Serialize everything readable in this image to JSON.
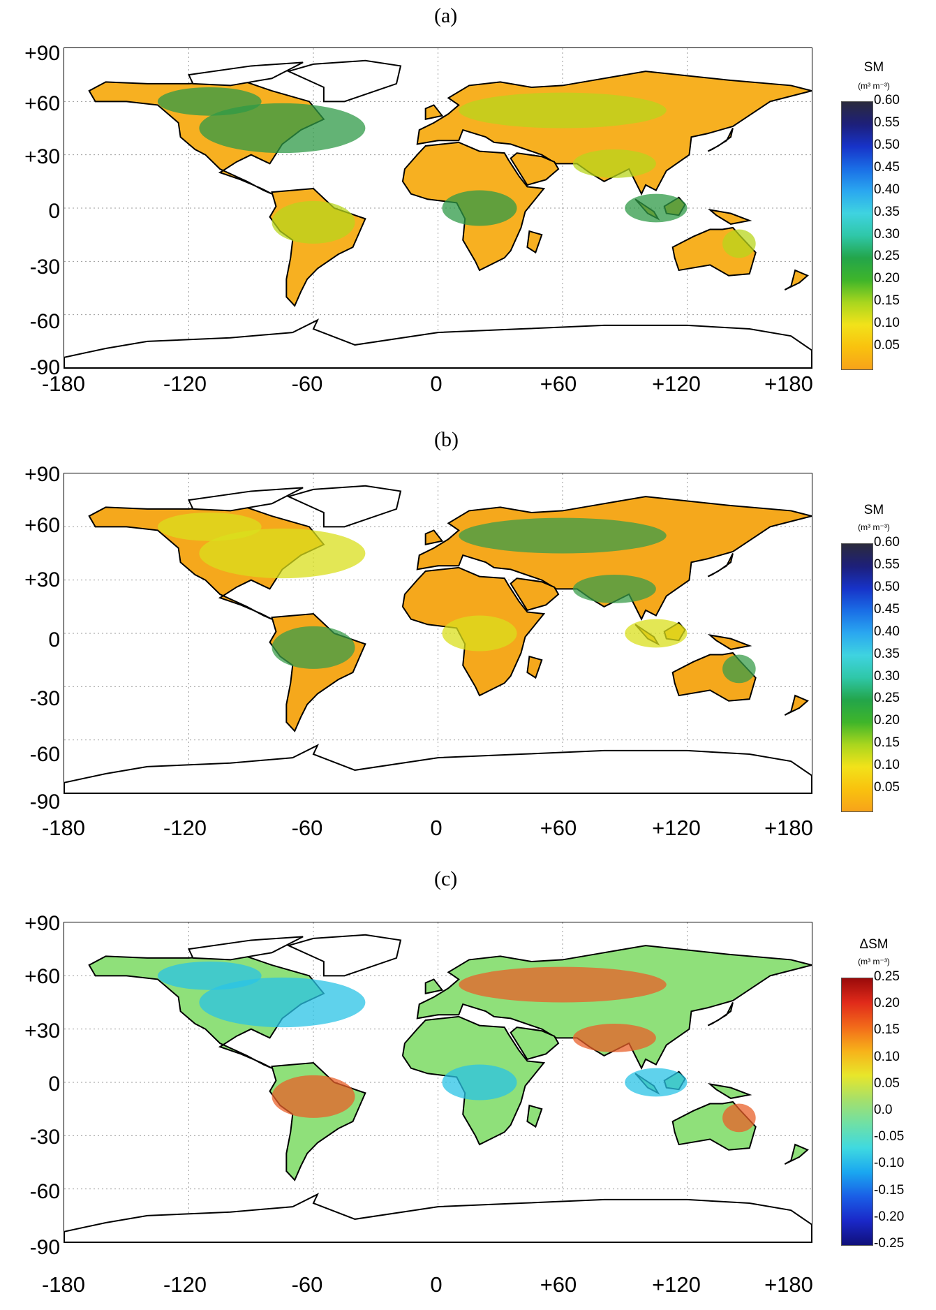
{
  "figure": {
    "x_ticks": [
      "-180",
      "-120",
      "-60",
      "0",
      "+60",
      "+120",
      "+180"
    ],
    "y_ticks": [
      "+90",
      "+60",
      "+30",
      "0",
      "-30",
      "-60",
      "-90"
    ]
  },
  "panels": [
    {
      "label": "(a)",
      "colorbar": {
        "title": "SM",
        "unit": "(m³ m⁻³)",
        "ticks": [
          "0.60",
          "0.55",
          "0.50",
          "0.45",
          "0.40",
          "0.35",
          "0.30",
          "0.25",
          "0.20",
          "0.15",
          "0.10",
          "0.05"
        ],
        "colors": [
          "#2b2b3d",
          "#1d1f7a",
          "#1733c8",
          "#1a6ee6",
          "#2aa7f0",
          "#3fd3e0",
          "#2fc7a8",
          "#23a54a",
          "#3fb52a",
          "#a9d61e",
          "#f2e21a",
          "#f9c20e",
          "#f7a31a"
        ]
      }
    },
    {
      "label": "(b)",
      "colorbar": {
        "title": "SM",
        "unit": "(m³ m⁻³)",
        "ticks": [
          "0.60",
          "0.55",
          "0.50",
          "0.45",
          "0.40",
          "0.35",
          "0.30",
          "0.25",
          "0.20",
          "0.15",
          "0.10",
          "0.05"
        ],
        "colors": [
          "#2b2b3d",
          "#1d1f7a",
          "#1733c8",
          "#1a6ee6",
          "#2aa7f0",
          "#3fd3e0",
          "#2fc7a8",
          "#23a54a",
          "#3fb52a",
          "#a9d61e",
          "#f2e21a",
          "#f9c20e",
          "#f7a31a"
        ]
      }
    },
    {
      "label": "(c)",
      "colorbar": {
        "title": "ΔSM",
        "unit": "(m³ m⁻³)",
        "ticks": [
          "0.25",
          "0.20",
          "0.15",
          "0.10",
          "0.05",
          "0.0",
          "-0.05",
          "-0.10",
          "-0.15",
          "-0.20",
          "-0.25"
        ],
        "colors": [
          "#9a0a0a",
          "#e02a1a",
          "#f26a1a",
          "#f7b21a",
          "#e8e62a",
          "#a6e06a",
          "#6fe0a6",
          "#3fd9e0",
          "#1aa7f0",
          "#1a5ee6",
          "#1a28c8",
          "#10107a"
        ]
      }
    }
  ],
  "legend": {
    "land_colors": {
      "a_dry": "#f7b021",
      "a_mid": "#b8d61c",
      "a_wet": "#2f9a47",
      "b_dry": "#f5a81c",
      "b_mid": "#d9df1c",
      "b_wet": "#3a9c4a",
      "c_base": "#8fe07a",
      "c_pos": "#e8602a",
      "c_neg": "#2ac3e6"
    }
  }
}
